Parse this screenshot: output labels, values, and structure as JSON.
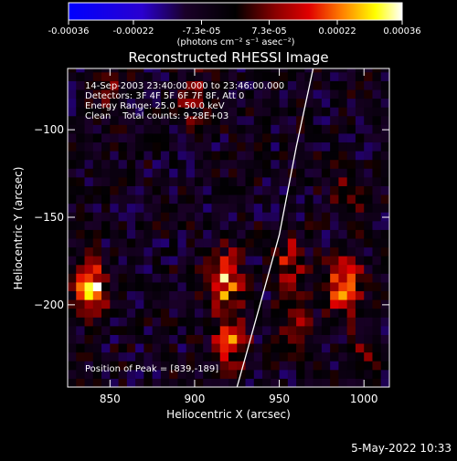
{
  "colorbar": {
    "ticks": [
      "-0.00036",
      "-0.00022",
      "-7.3e-05",
      "7.3e-05",
      "0.00022",
      "0.00036"
    ],
    "tick_values": [
      -0.00036,
      -0.00022,
      -7.3e-05,
      7.3e-05,
      0.00022,
      0.00036
    ],
    "units": "(photons cm⁻² s⁻¹ asec⁻²)",
    "range": [
      -0.00036,
      0.00036
    ],
    "colormap": "blue-purple-red-yellow-white"
  },
  "chart_data": {
    "type": "heatmap",
    "title": "Reconstructed RHESSI Image",
    "xlabel": "Heliocentric X (arcsec)",
    "ylabel": "Heliocentric Y (arcsec)",
    "xlim": [
      825,
      1015
    ],
    "ylim": [
      -247,
      -65
    ],
    "xticks": [
      850,
      900,
      950,
      1000
    ],
    "yticks": [
      -100,
      -150,
      -200
    ],
    "annotations": [
      "14-Sep-2003 23:40:00.000 to 23:46:00.000",
      "Detectors: 3F 4F 5F 6F 7F 8F, Att 0",
      "Energy Range: 25.0 - 50.0 keV",
      "Clean    Total counts: 9.28E+03"
    ],
    "peak_label": "Position of Peak = [839,-189]",
    "peak": [
      839,
      -189
    ],
    "limb_curve": [
      [
        970,
        -65
      ],
      [
        960,
        -110
      ],
      [
        950,
        -160
      ],
      [
        940,
        -195
      ],
      [
        930,
        -230
      ],
      [
        925,
        -247
      ]
    ],
    "sources": [
      {
        "x": 918,
        "y": -185,
        "peak": 0.0003
      },
      {
        "x": 920,
        "y": -220,
        "peak": 0.00026
      },
      {
        "x": 839,
        "y": -189,
        "peak": 0.00036
      },
      {
        "x": 988,
        "y": -189,
        "peak": 0.00033
      },
      {
        "x": 955,
        "y": -175,
        "peak": 0.00018
      },
      {
        "x": 960,
        "y": -210,
        "peak": 0.00016
      },
      {
        "x": 1000,
        "y": -230,
        "peak": 0.00012
      },
      {
        "x": 900,
        "y": -80,
        "peak": 0.00014
      },
      {
        "x": 850,
        "y": -75,
        "peak": 0.00012
      },
      {
        "x": 990,
        "y": -140,
        "peak": 0.0001
      }
    ]
  },
  "footer": {
    "timestamp": "5-May-2022 10:33"
  }
}
